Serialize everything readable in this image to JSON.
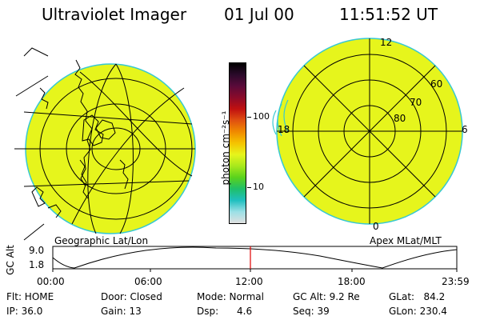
{
  "header": {
    "instrument": "Ultraviolet Imager",
    "date": "01 Jul 00",
    "time": "11:51:52 UT"
  },
  "colors": {
    "fill": "#e6f51c",
    "edge": "#37c8d2",
    "background": "#ffffff",
    "marker": "#e00000"
  },
  "left_panel": {
    "caption": "Geographic Lat/Lon"
  },
  "right_panel": {
    "caption": "Apex MLat/MLT",
    "lat_labels": [
      "60",
      "70",
      "80"
    ],
    "mlt_labels": [
      "12",
      "18",
      "6",
      "0"
    ]
  },
  "colorbar": {
    "unit_label": "photon cm⁻²s⁻¹",
    "tick_labels": [
      "100",
      "10"
    ],
    "stops": [
      "#000000",
      "#2a0a2a",
      "#5a0a3a",
      "#8a0a2a",
      "#c01010",
      "#e05010",
      "#f08a00",
      "#f5c400",
      "#e6f51c",
      "#a8e81c",
      "#5ad21c",
      "#1fbf6a",
      "#1fbfbf",
      "#9be0e6",
      "#e0e0e0"
    ]
  },
  "orbit": {
    "axis_label": "GC Alt",
    "y_ticks": [
      "9.0",
      "1.8"
    ],
    "time_ticks": [
      "00:00",
      "06:00",
      "12:00",
      "18:00",
      "23:59"
    ]
  },
  "status": {
    "flt": "Flt: HOME",
    "ip": "IP: 36.0",
    "door": "Door: Closed",
    "gain": "Gain: 13",
    "mode": "Mode: Normal",
    "dsp": "Dsp:      4.6",
    "gcalt": "GC Alt: 9.2 Re",
    "seq": "Seq: 39",
    "glat": "GLat:   84.2",
    "glon": "GLon: 230.4"
  }
}
